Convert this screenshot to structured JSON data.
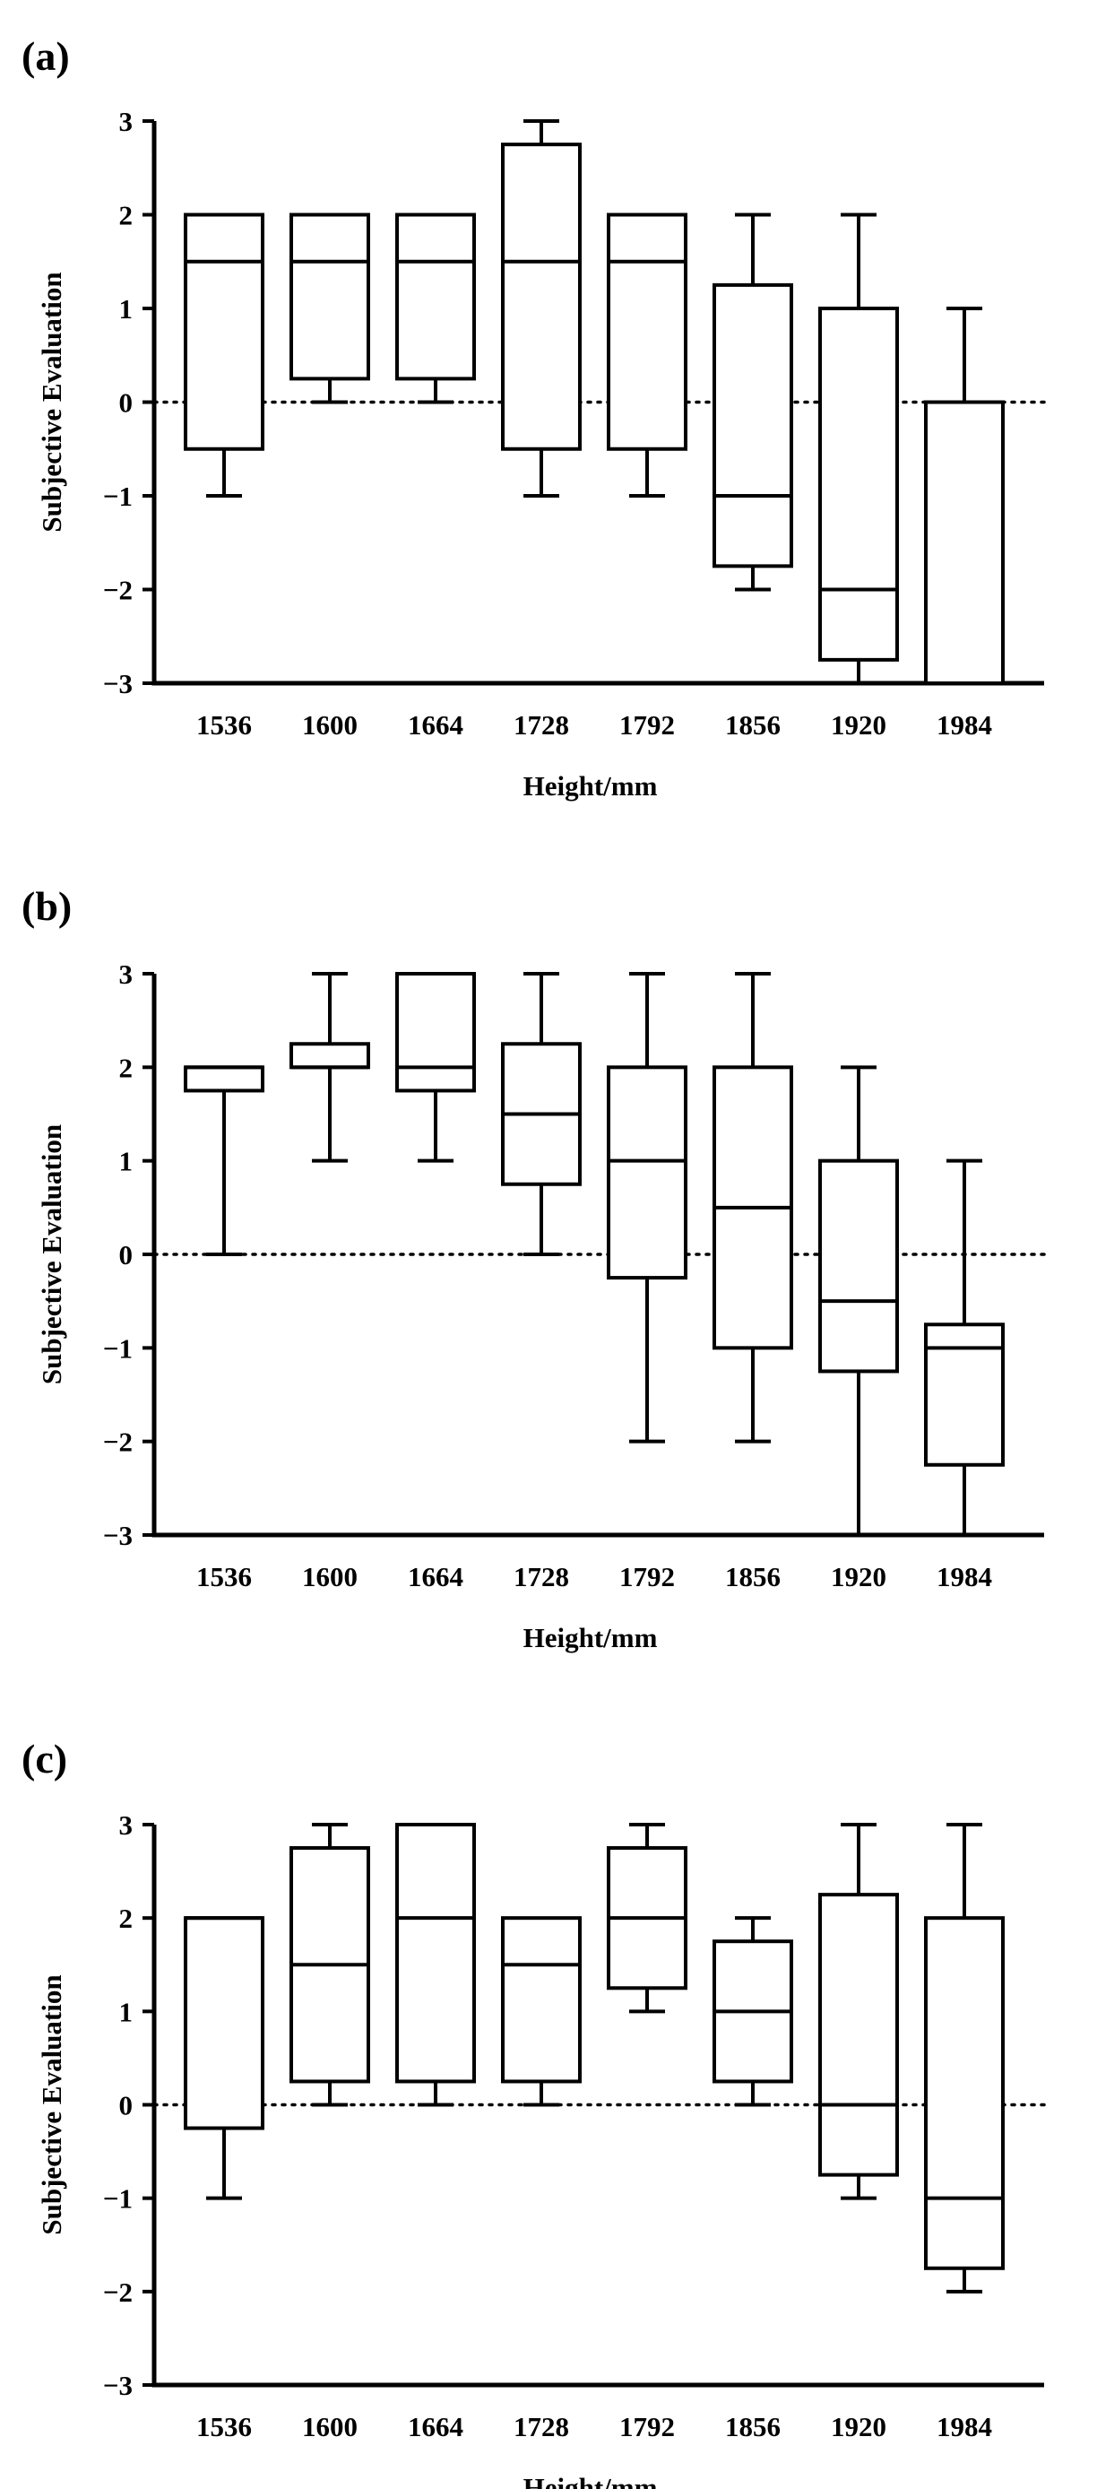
{
  "chart_data": [
    {
      "type": "box",
      "panel_label": "(a)",
      "xlabel": "Height/mm",
      "ylabel": "Subjective Evaluation",
      "ylim": [
        -3,
        3
      ],
      "yticks": [
        "3",
        "2",
        "1",
        "0",
        "−1",
        "−2",
        "−3"
      ],
      "categories": [
        "1536",
        "1600",
        "1664",
        "1728",
        "1792",
        "1856",
        "1920",
        "1984"
      ],
      "reference_line": {
        "y": 0,
        "style": "dotted"
      },
      "boxes": [
        {
          "min": -1,
          "q1": -0.5,
          "median": 1.5,
          "q3": 2,
          "max": 2
        },
        {
          "min": 0,
          "q1": 0.25,
          "median": 1.5,
          "q3": 2,
          "max": 2
        },
        {
          "min": 0,
          "q1": 0.25,
          "median": 1.5,
          "q3": 2,
          "max": 2
        },
        {
          "min": -1,
          "q1": -0.5,
          "median": 1.5,
          "q3": 2.75,
          "max": 3
        },
        {
          "min": -1,
          "q1": -0.5,
          "median": 1.5,
          "q3": 2,
          "max": 2
        },
        {
          "min": -2,
          "q1": -1.75,
          "median": -1,
          "q3": 1.25,
          "max": 2
        },
        {
          "min": -3,
          "q1": -2.75,
          "median": -2,
          "q3": 1,
          "max": 2
        },
        {
          "min": -3,
          "q1": -3,
          "median": -3,
          "q3": 0,
          "max": 1
        }
      ]
    },
    {
      "type": "box",
      "panel_label": "(b)",
      "xlabel": "Height/mm",
      "ylabel": "Subjective Evaluation",
      "ylim": [
        -3,
        3
      ],
      "yticks": [
        "3",
        "2",
        "1",
        "0",
        "−1",
        "−2",
        "−3"
      ],
      "categories": [
        "1536",
        "1600",
        "1664",
        "1728",
        "1792",
        "1856",
        "1920",
        "1984"
      ],
      "reference_line": {
        "y": 0,
        "style": "dotted"
      },
      "boxes": [
        {
          "min": 0,
          "q1": 1.75,
          "median": 2,
          "q3": 2,
          "max": 2
        },
        {
          "min": 1,
          "q1": 2,
          "median": 2,
          "q3": 2.25,
          "max": 3
        },
        {
          "min": 1,
          "q1": 1.75,
          "median": 2,
          "q3": 3,
          "max": 3
        },
        {
          "min": 0,
          "q1": 0.75,
          "median": 1.5,
          "q3": 2.25,
          "max": 3
        },
        {
          "min": -2,
          "q1": -0.25,
          "median": 1,
          "q3": 2,
          "max": 3
        },
        {
          "min": -2,
          "q1": -1,
          "median": 0.5,
          "q3": 2,
          "max": 3
        },
        {
          "min": -3,
          "q1": -1.25,
          "median": -0.5,
          "q3": 1,
          "max": 2
        },
        {
          "min": -3,
          "q1": -2.25,
          "median": -1,
          "q3": -0.75,
          "max": 1
        }
      ]
    },
    {
      "type": "box",
      "panel_label": "(c)",
      "xlabel": "Height/mm",
      "ylabel": "Subjective Evaluation",
      "ylim": [
        -3,
        3
      ],
      "yticks": [
        "3",
        "2",
        "1",
        "0",
        "−1",
        "−2",
        "−3"
      ],
      "categories": [
        "1536",
        "1600",
        "1664",
        "1728",
        "1792",
        "1856",
        "1920",
        "1984"
      ],
      "reference_line": {
        "y": 0,
        "style": "dotted"
      },
      "boxes": [
        {
          "min": -1,
          "q1": -0.25,
          "median": 2,
          "q3": 2,
          "max": 2
        },
        {
          "min": 0,
          "q1": 0.25,
          "median": 1.5,
          "q3": 2.75,
          "max": 3
        },
        {
          "min": 0,
          "q1": 0.25,
          "median": 2,
          "q3": 3,
          "max": 3
        },
        {
          "min": 0,
          "q1": 0.25,
          "median": 1.5,
          "q3": 2,
          "max": 2
        },
        {
          "min": 1,
          "q1": 1.25,
          "median": 2,
          "q3": 2.75,
          "max": 3
        },
        {
          "min": 0,
          "q1": 0.25,
          "median": 1,
          "q3": 1.75,
          "max": 2
        },
        {
          "min": -1,
          "q1": -0.75,
          "median": 0,
          "q3": 2.25,
          "max": 3
        },
        {
          "min": -2,
          "q1": -1.75,
          "median": -1,
          "q3": 2,
          "max": 3
        }
      ]
    }
  ]
}
